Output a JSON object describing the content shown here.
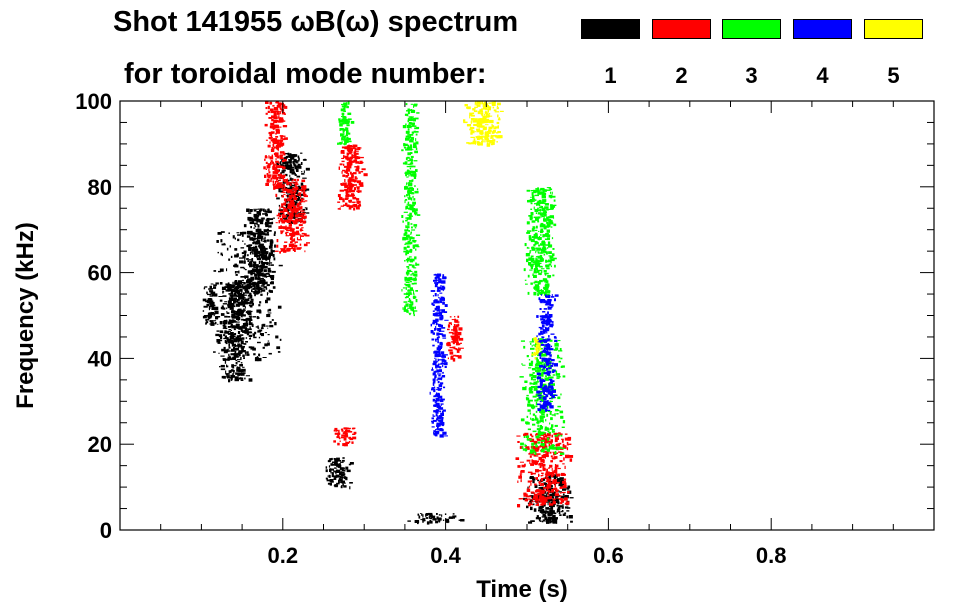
{
  "chart_data": {
    "type": "heatmap",
    "title": "Shot 141955 ωB(ω) spectrum",
    "subtitle": "for toroidal mode number:",
    "xlabel": "Time (s)",
    "ylabel": "Frequency (kHz)",
    "xlim": [
      0.0,
      1.0
    ],
    "ylim": [
      0,
      100
    ],
    "x_ticks": [
      0.2,
      0.4,
      0.6,
      0.8
    ],
    "x_tick_labels": [
      "0.2",
      "0.4",
      "0.6",
      "0.8"
    ],
    "y_ticks": [
      0,
      20,
      40,
      60,
      80,
      100
    ],
    "y_tick_labels": [
      "0",
      "20",
      "40",
      "60",
      "80",
      "100"
    ],
    "legend": [
      {
        "n": 1,
        "label": "1",
        "color": "#000000"
      },
      {
        "n": 2,
        "label": "2",
        "color": "#ff0000"
      },
      {
        "n": 3,
        "label": "3",
        "color": "#00ff00"
      },
      {
        "n": 4,
        "label": "4",
        "color": "#0000ff"
      },
      {
        "n": 5,
        "label": "5",
        "color": "#ffff00"
      }
    ],
    "regions": [
      {
        "mode": 1,
        "t": [
          0.11,
          0.2
        ],
        "f": [
          40,
          70
        ]
      },
      {
        "mode": 1,
        "t": [
          0.15,
          0.19
        ],
        "f": [
          55,
          75
        ]
      },
      {
        "mode": 1,
        "t": [
          0.19,
          0.23
        ],
        "f": [
          72,
          88
        ]
      },
      {
        "mode": 1,
        "t": [
          0.12,
          0.16
        ],
        "f": [
          35,
          58
        ]
      },
      {
        "mode": 1,
        "t": [
          0.1,
          0.12
        ],
        "f": [
          48,
          58
        ]
      },
      {
        "mode": 1,
        "t": [
          0.25,
          0.285
        ],
        "f": [
          10,
          17
        ]
      },
      {
        "mode": 1,
        "t": [
          0.495,
          0.555
        ],
        "f": [
          2,
          13
        ]
      },
      {
        "mode": 1,
        "t": [
          0.35,
          0.42
        ],
        "f": [
          2,
          4
        ]
      },
      {
        "mode": 2,
        "t": [
          0.175,
          0.205
        ],
        "f": [
          80,
          100
        ]
      },
      {
        "mode": 2,
        "t": [
          0.19,
          0.23
        ],
        "f": [
          65,
          82
        ]
      },
      {
        "mode": 2,
        "t": [
          0.265,
          0.3
        ],
        "f": [
          75,
          90
        ]
      },
      {
        "mode": 2,
        "t": [
          0.4,
          0.42
        ],
        "f": [
          40,
          50
        ]
      },
      {
        "mode": 2,
        "t": [
          0.485,
          0.555
        ],
        "f": [
          6,
          23
        ]
      },
      {
        "mode": 2,
        "t": [
          0.26,
          0.29
        ],
        "f": [
          20,
          24
        ]
      },
      {
        "mode": 3,
        "t": [
          0.265,
          0.285
        ],
        "f": [
          90,
          100
        ]
      },
      {
        "mode": 3,
        "t": [
          0.345,
          0.365
        ],
        "f": [
          50,
          100
        ]
      },
      {
        "mode": 3,
        "t": [
          0.49,
          0.545
        ],
        "f": [
          18,
          45
        ]
      },
      {
        "mode": 3,
        "t": [
          0.495,
          0.535
        ],
        "f": [
          55,
          80
        ]
      },
      {
        "mode": 4,
        "t": [
          0.51,
          0.535
        ],
        "f": [
          28,
          55
        ]
      },
      {
        "mode": 4,
        "t": [
          0.38,
          0.4
        ],
        "f": [
          22,
          60
        ]
      },
      {
        "mode": 5,
        "t": [
          0.42,
          0.47
        ],
        "f": [
          90,
          100
        ]
      },
      {
        "mode": 5,
        "t": [
          0.505,
          0.515
        ],
        "f": [
          40,
          45
        ]
      }
    ],
    "grid": false,
    "legend_position": "top-right"
  }
}
